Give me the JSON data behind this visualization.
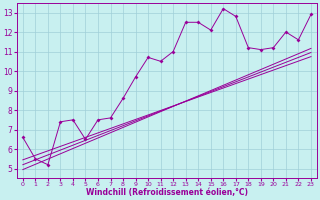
{
  "xlabel": "Windchill (Refroidissement éolien,°C)",
  "background_color": "#c8f0f0",
  "grid_color": "#a0d0d8",
  "line_color": "#990099",
  "x_data": [
    0,
    1,
    2,
    3,
    4,
    5,
    6,
    7,
    8,
    9,
    10,
    11,
    12,
    13,
    14,
    15,
    16,
    17,
    18,
    19,
    20,
    21,
    22,
    23
  ],
  "y_main": [
    6.6,
    5.5,
    5.2,
    7.4,
    7.5,
    6.5,
    7.5,
    7.6,
    8.6,
    9.7,
    10.7,
    10.5,
    11.0,
    12.5,
    12.5,
    12.1,
    13.2,
    12.8,
    11.2,
    11.1,
    11.2,
    12.0,
    11.6,
    12.9
  ],
  "y_reg": [
    5.2,
    5.45,
    5.7,
    5.95,
    6.2,
    6.45,
    6.7,
    6.95,
    7.2,
    7.45,
    7.7,
    7.95,
    8.2,
    8.45,
    8.7,
    8.95,
    9.2,
    9.45,
    9.7,
    9.95,
    10.2,
    10.45,
    10.7,
    10.95
  ],
  "y_upper": [
    5.45,
    5.68,
    5.91,
    6.14,
    6.37,
    6.6,
    6.83,
    7.06,
    7.29,
    7.52,
    7.75,
    7.98,
    8.21,
    8.44,
    8.67,
    8.9,
    9.13,
    9.36,
    9.59,
    9.82,
    10.05,
    10.28,
    10.51,
    10.74
  ],
  "y_lower": [
    4.95,
    5.22,
    5.49,
    5.76,
    6.03,
    6.3,
    6.57,
    6.84,
    7.11,
    7.38,
    7.65,
    7.92,
    8.19,
    8.46,
    8.73,
    9.0,
    9.27,
    9.54,
    9.81,
    10.08,
    10.35,
    10.62,
    10.89,
    11.16
  ],
  "xlim": [
    -0.5,
    23.5
  ],
  "ylim": [
    4.5,
    13.5
  ],
  "yticks": [
    5,
    6,
    7,
    8,
    9,
    10,
    11,
    12,
    13
  ],
  "xticks": [
    0,
    1,
    2,
    3,
    4,
    5,
    6,
    7,
    8,
    9,
    10,
    11,
    12,
    13,
    14,
    15,
    16,
    17,
    18,
    19,
    20,
    21,
    22,
    23
  ]
}
